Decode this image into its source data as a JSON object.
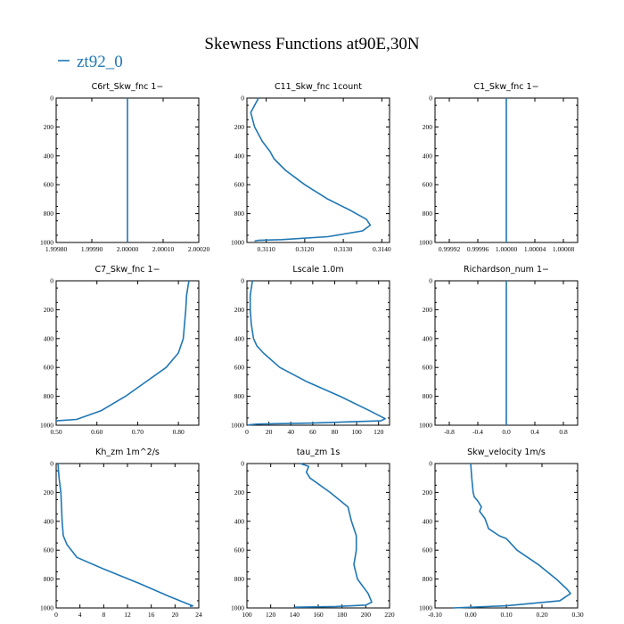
{
  "figure": {
    "title": "Skewness Functions at90E,30N",
    "legend": [
      {
        "name": "zt92_0",
        "color": "#1f77b4"
      }
    ],
    "line_color": "#1f77b4"
  },
  "chart_data": [
    {
      "type": "line",
      "title": "C6rt_Skw_fnc   1−",
      "xlim": [
        1.9998,
        2.0002
      ],
      "ylim": [
        0,
        1000
      ],
      "y_inverted": true,
      "xticks": [
        1.9998,
        1.9999,
        2.0,
        2.0001,
        2.0002
      ],
      "xtick_labels": [
        "1.99980",
        "1.99990",
        "2.00000",
        "2.00010",
        "2.00020"
      ],
      "yticks": [
        0,
        200,
        400,
        600,
        800,
        1000
      ],
      "ytick_labels": [
        "0",
        "200",
        "400",
        "600",
        "800",
        "1000"
      ],
      "x": [
        2.0,
        2.0
      ],
      "y": [
        0,
        1000
      ]
    },
    {
      "type": "line",
      "title": "C11_Skw_fnc   1count",
      "xlim": [
        0.3105,
        0.3142
      ],
      "ylim": [
        0,
        1000
      ],
      "y_inverted": true,
      "xticks": [
        0.311,
        0.312,
        0.313,
        0.314
      ],
      "xtick_labels": [
        "0.3110",
        "0.3120",
        "0.3130",
        "0.3140"
      ],
      "yticks": [
        0,
        200,
        400,
        600,
        800,
        1000
      ],
      "ytick_labels": [
        "0",
        "200",
        "400",
        "600",
        "800",
        "1000"
      ],
      "x": [
        0.3108,
        0.3106,
        0.3107,
        0.3109,
        0.3111,
        0.3112,
        0.3115,
        0.312,
        0.3126,
        0.3132,
        0.3136,
        0.3137,
        0.3135,
        0.3126,
        0.3114,
        0.3108,
        0.3107
      ],
      "y": [
        0,
        100,
        200,
        300,
        370,
        420,
        500,
        600,
        700,
        780,
        840,
        880,
        920,
        960,
        980,
        985,
        990
      ]
    },
    {
      "type": "line",
      "title": "C1_Skw_fnc   1−",
      "xlim": [
        0.9999,
        1.0001
      ],
      "ylim": [
        0,
        1000
      ],
      "y_inverted": true,
      "xticks": [
        0.99992,
        0.99996,
        1.0,
        1.00004,
        1.00008
      ],
      "xtick_labels": [
        "0.99992",
        "0.99996",
        "1.00000",
        "1.00004",
        "1.00008"
      ],
      "yticks": [
        0,
        200,
        400,
        600,
        800,
        1000
      ],
      "ytick_labels": [
        "0",
        "200",
        "400",
        "600",
        "800",
        "1000"
      ],
      "x": [
        1.0,
        1.0
      ],
      "y": [
        0,
        1000
      ]
    },
    {
      "type": "line",
      "title": "C7_Skw_fnc   1−",
      "xlim": [
        0.5,
        0.85
      ],
      "ylim": [
        0,
        1000
      ],
      "y_inverted": true,
      "xticks": [
        0.5,
        0.6,
        0.7,
        0.8
      ],
      "xtick_labels": [
        "0.50",
        "0.60",
        "0.70",
        "0.80"
      ],
      "yticks": [
        0,
        200,
        400,
        600,
        800,
        1000
      ],
      "ytick_labels": [
        "0",
        "200",
        "400",
        "600",
        "800",
        "1000"
      ],
      "x": [
        0.826,
        0.824,
        0.82,
        0.818,
        0.815,
        0.812,
        0.8,
        0.77,
        0.72,
        0.67,
        0.61,
        0.55,
        0.5
      ],
      "y": [
        0,
        30,
        100,
        200,
        300,
        400,
        500,
        600,
        700,
        800,
        900,
        960,
        970
      ]
    },
    {
      "type": "line",
      "title": "Lscale   1.0m",
      "xlim": [
        0,
        130
      ],
      "ylim": [
        0,
        1000
      ],
      "y_inverted": true,
      "xticks": [
        0,
        20,
        40,
        60,
        80,
        100,
        120
      ],
      "xtick_labels": [
        "0",
        "20",
        "40",
        "60",
        "80",
        "100",
        "120"
      ],
      "yticks": [
        0,
        200,
        400,
        600,
        800,
        1000
      ],
      "ytick_labels": [
        "0",
        "200",
        "400",
        "600",
        "800",
        "1000"
      ],
      "x": [
        5,
        3,
        3,
        4,
        6,
        9,
        15,
        30,
        55,
        85,
        112,
        126,
        122,
        60,
        10,
        3,
        1
      ],
      "y": [
        0,
        100,
        200,
        300,
        400,
        450,
        500,
        600,
        700,
        800,
        900,
        955,
        970,
        985,
        992,
        996,
        1000
      ]
    },
    {
      "type": "line",
      "title": "Richardson_num   1−",
      "xlim": [
        -1,
        1
      ],
      "ylim": [
        0,
        1000
      ],
      "y_inverted": true,
      "xticks": [
        -0.8,
        -0.4,
        0.0,
        0.4,
        0.8
      ],
      "xtick_labels": [
        "-0.8",
        "-0.4",
        "0.0",
        "0.4",
        "0.8"
      ],
      "yticks": [
        0,
        200,
        400,
        600,
        800,
        1000
      ],
      "ytick_labels": [
        "0",
        "200",
        "400",
        "600",
        "800",
        "1000"
      ],
      "x": [
        0.0,
        0.0
      ],
      "y": [
        0,
        1000
      ]
    },
    {
      "type": "line",
      "title": "Kh_zm   1m^2/s",
      "xlim": [
        0,
        24
      ],
      "ylim": [
        0,
        1000
      ],
      "y_inverted": true,
      "xticks": [
        0,
        4,
        8,
        12,
        16,
        20,
        24
      ],
      "xtick_labels": [
        "0",
        "4",
        "8",
        "12",
        "16",
        "20",
        "24"
      ],
      "yticks": [
        0,
        200,
        400,
        600,
        800,
        1000
      ],
      "ytick_labels": [
        "0",
        "200",
        "400",
        "600",
        "800",
        "1000"
      ],
      "x": [
        0.3,
        0.5,
        0.8,
        0.9,
        1.0,
        1.2,
        1.8,
        3.5,
        8,
        14,
        19,
        22,
        23,
        22.5
      ],
      "y": [
        0,
        100,
        200,
        300,
        400,
        500,
        560,
        650,
        730,
        830,
        920,
        970,
        985,
        990
      ]
    },
    {
      "type": "line",
      "title": "tau_zm   1s",
      "xlim": [
        100,
        220
      ],
      "ylim": [
        0,
        1000
      ],
      "y_inverted": true,
      "xticks": [
        100,
        120,
        140,
        160,
        180,
        200,
        220
      ],
      "xtick_labels": [
        "100",
        "120",
        "140",
        "160",
        "180",
        "200",
        "220"
      ],
      "yticks": [
        0,
        200,
        400,
        600,
        800,
        1000
      ],
      "ytick_labels": [
        "0",
        "200",
        "400",
        "600",
        "800",
        "1000"
      ],
      "x": [
        145,
        152,
        150,
        153,
        170,
        185,
        188,
        190,
        192,
        192,
        190,
        193,
        202,
        205,
        200,
        175,
        140
      ],
      "y": [
        0,
        20,
        60,
        100,
        200,
        300,
        400,
        450,
        500,
        600,
        700,
        800,
        900,
        960,
        980,
        990,
        995
      ]
    },
    {
      "type": "line",
      "title": "Skw_velocity   1m/s",
      "xlim": [
        -0.1,
        0.3
      ],
      "ylim": [
        0,
        1000
      ],
      "y_inverted": true,
      "xticks": [
        -0.1,
        0.0,
        0.1,
        0.2,
        0.3
      ],
      "xtick_labels": [
        "-0.10",
        "0.00",
        "0.10",
        "0.20",
        "0.30"
      ],
      "yticks": [
        0,
        200,
        400,
        600,
        800,
        1000
      ],
      "ytick_labels": [
        "0",
        "200",
        "400",
        "600",
        "800",
        "1000"
      ],
      "x": [
        0.0,
        0.003,
        0.007,
        0.01,
        0.02,
        0.03,
        0.025,
        0.04,
        0.05,
        0.08,
        0.1,
        0.13,
        0.19,
        0.24,
        0.27,
        0.28,
        0.25,
        0.1,
        -0.05
      ],
      "y": [
        0,
        100,
        200,
        230,
        260,
        300,
        330,
        380,
        450,
        500,
        520,
        600,
        700,
        800,
        870,
        900,
        950,
        985,
        1000
      ]
    }
  ]
}
